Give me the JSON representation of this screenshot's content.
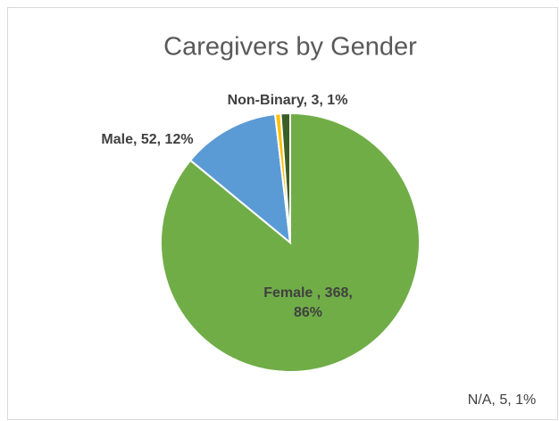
{
  "chart_data": {
    "type": "pie",
    "title": "Caregivers by Gender",
    "values": [
      368,
      52,
      3,
      5
    ],
    "value_labels": [
      "Female , 368, 86%",
      "Male, 52, 12%",
      "Non-Binary, 3, 1%",
      "N/A, 5, 1%"
    ],
    "colors": [
      "#70ad47",
      "#5b9bd5",
      "#ffc000",
      "#3b5e27"
    ]
  }
}
